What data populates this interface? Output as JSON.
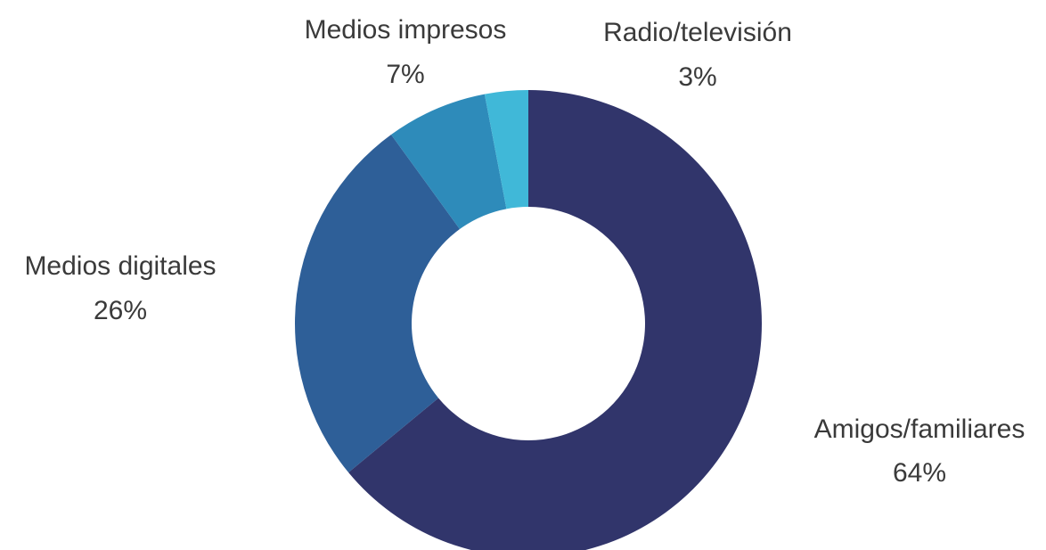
{
  "chart_data": {
    "type": "donut",
    "categories": [
      "Amigos/familiares",
      "Medios digitales",
      "Medios impresos",
      "Radio/televisión"
    ],
    "values": [
      64,
      26,
      7,
      3
    ],
    "value_labels": [
      "64%",
      "26%",
      "7%",
      "3%"
    ],
    "colors": [
      "#31356b",
      "#2e5f98",
      "#2e8bba",
      "#40b8d8"
    ]
  }
}
